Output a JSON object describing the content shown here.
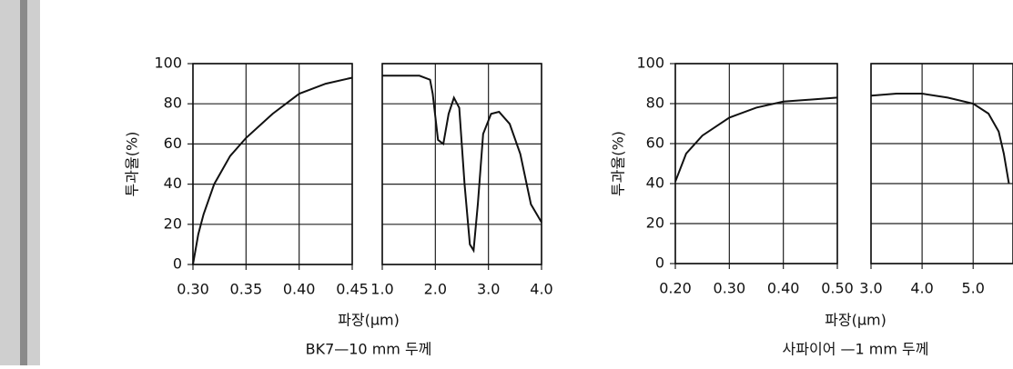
{
  "chart_data": [
    {
      "type": "line",
      "ylabel": "투과율(%)",
      "xlabel": "파장(μm)",
      "caption": "BK7—10 mm 두께",
      "x": [
        0.3,
        0.305,
        0.31,
        0.32,
        0.335,
        0.35,
        0.375,
        0.4,
        0.425,
        0.45
      ],
      "values": [
        0,
        15,
        25,
        40,
        54,
        63,
        75,
        85,
        90,
        93
      ],
      "xlim": [
        0.3,
        0.45
      ],
      "ylim": [
        0,
        100
      ],
      "xticks": [
        {
          "value": 0.3,
          "label": "0.30"
        },
        {
          "value": 0.35,
          "label": "0.35"
        },
        {
          "value": 0.4,
          "label": "0.40"
        },
        {
          "value": 0.45,
          "label": "0.45"
        }
      ],
      "yticks": [
        0,
        20,
        40,
        60,
        80,
        100
      ],
      "grid": true,
      "ytick_labels": true,
      "color": "#111111"
    },
    {
      "type": "line",
      "x": [
        1.0,
        1.7,
        1.9,
        1.95,
        2.05,
        2.15,
        2.25,
        2.35,
        2.45,
        2.55,
        2.65,
        2.72,
        2.8,
        2.9,
        3.05,
        3.2,
        3.4,
        3.6,
        3.8,
        4.0
      ],
      "values": [
        94,
        94,
        92,
        85,
        62,
        60,
        75,
        83,
        78,
        40,
        10,
        7,
        30,
        65,
        75,
        76,
        70,
        55,
        30,
        21
      ],
      "xlim": [
        1.0,
        4.0
      ],
      "ylim": [
        0,
        100
      ],
      "xticks": [
        {
          "value": 1.0,
          "label": "1.0"
        },
        {
          "value": 2.0,
          "label": "2.0"
        },
        {
          "value": 3.0,
          "label": "3.0"
        },
        {
          "value": 4.0,
          "label": "4.0"
        }
      ],
      "yticks": [
        0,
        20,
        40,
        60,
        80,
        100
      ],
      "grid": true,
      "ytick_labels": false,
      "color": "#111111"
    },
    {
      "type": "line",
      "ylabel": "투과율(%)",
      "xlabel": "파장(μm)",
      "caption": "사파이어 —1 mm 두께",
      "x": [
        0.2,
        0.22,
        0.25,
        0.3,
        0.35,
        0.4,
        0.45,
        0.5
      ],
      "values": [
        41,
        55,
        64,
        73,
        78,
        81,
        82,
        83
      ],
      "xlim": [
        0.2,
        0.5
      ],
      "ylim": [
        0,
        100
      ],
      "xticks": [
        {
          "value": 0.2,
          "label": "0.20"
        },
        {
          "value": 0.3,
          "label": "0.30"
        },
        {
          "value": 0.4,
          "label": "0.40"
        },
        {
          "value": 0.5,
          "label": "0.50"
        }
      ],
      "yticks": [
        0,
        20,
        40,
        60,
        80,
        100
      ],
      "grid": true,
      "ytick_labels": true,
      "color": "#111111"
    },
    {
      "type": "line",
      "x": [
        3.0,
        3.5,
        4.0,
        4.5,
        5.0,
        5.3,
        5.5,
        5.6,
        5.7
      ],
      "values": [
        84,
        85,
        85,
        83,
        80,
        75,
        66,
        55,
        40
      ],
      "xlim": [
        3.0,
        5.78
      ],
      "ylim": [
        0,
        100
      ],
      "xticks": [
        {
          "value": 3.0,
          "label": "3.0"
        },
        {
          "value": 4.0,
          "label": "4.0"
        },
        {
          "value": 5.0,
          "label": "5.0"
        }
      ],
      "yticks": [
        0,
        20,
        40,
        60,
        80,
        100
      ],
      "grid": true,
      "ytick_labels": false,
      "color": "#111111"
    }
  ]
}
